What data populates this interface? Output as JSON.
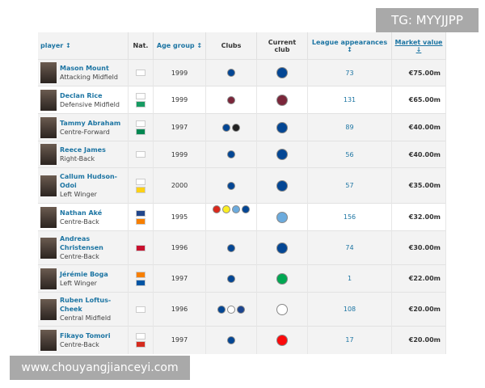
{
  "header": {
    "player": "player ↕",
    "nat": "Nat.",
    "age": "Age group ↕",
    "clubs": "Clubs",
    "current": "Current club",
    "apps": "League appearances ↕",
    "value": "Market value ↓"
  },
  "flag_colors": {
    "ENG": "#ffffff",
    "IRL": "#169b62",
    "NGA": "#008751",
    "GHA": "#fcd116",
    "NED": "#21468b",
    "CIV": "#f77f00",
    "DEN": "#c8102e",
    "FRA": "#0055a4",
    "CAN": "#d52b1e"
  },
  "club_colors": {
    "chelsea": "#034694",
    "westham": "#7a263a",
    "swansea": "#222222",
    "bournemouth": "#da291c",
    "watford": "#fbee23",
    "mancity": "#6cabdd",
    "sassuolo": "#00a752",
    "fulham": "#ffffff",
    "palace": "#1b458f",
    "milan": "#fb090b"
  },
  "rows": [
    {
      "name": "Mason Mount",
      "pos": "Attacking Midfield",
      "nat": [
        "ENG"
      ],
      "age": "1999",
      "clubs": [
        "chelsea"
      ],
      "current": "chelsea",
      "apps": "73",
      "value": "€75.00m"
    },
    {
      "name": "Declan Rice",
      "pos": "Defensive Midfield",
      "nat": [
        "ENG",
        "IRL"
      ],
      "age": "1999",
      "clubs": [
        "westham"
      ],
      "current": "westham",
      "apps": "131",
      "value": "€65.00m"
    },
    {
      "name": "Tammy Abraham",
      "pos": "Centre-Forward",
      "nat": [
        "ENG",
        "NGA"
      ],
      "age": "1997",
      "clubs": [
        "chelsea",
        "swansea"
      ],
      "current": "chelsea",
      "apps": "89",
      "value": "€40.00m"
    },
    {
      "name": "Reece James",
      "pos": "Right-Back",
      "nat": [
        "ENG"
      ],
      "age": "1999",
      "clubs": [
        "chelsea"
      ],
      "current": "chelsea",
      "apps": "56",
      "value": "€40.00m"
    },
    {
      "name": "Callum Hudson-Odoi",
      "pos": "Left Winger",
      "nat": [
        "ENG",
        "GHA"
      ],
      "age": "2000",
      "clubs": [
        "chelsea"
      ],
      "current": "chelsea",
      "apps": "57",
      "value": "€35.00m"
    },
    {
      "name": "Nathan Aké",
      "pos": "Centre-Back",
      "nat": [
        "NED",
        "CIV"
      ],
      "age": "1995",
      "clubs": [
        "bournemouth",
        "watford",
        "mancity",
        "chelsea"
      ],
      "current": "mancity",
      "apps": "156",
      "value": "€32.00m"
    },
    {
      "name": "Andreas Christensen",
      "pos": "Centre-Back",
      "nat": [
        "DEN"
      ],
      "age": "1996",
      "clubs": [
        "chelsea"
      ],
      "current": "chelsea",
      "apps": "74",
      "value": "€30.00m"
    },
    {
      "name": "Jérémie Boga",
      "pos": "Left Winger",
      "nat": [
        "CIV",
        "FRA"
      ],
      "age": "1997",
      "clubs": [
        "chelsea"
      ],
      "current": "sassuolo",
      "apps": "1",
      "value": "€22.00m"
    },
    {
      "name": "Ruben Loftus-Cheek",
      "pos": "Central Midfield",
      "nat": [
        "ENG"
      ],
      "age": "1996",
      "clubs": [
        "chelsea",
        "fulham",
        "palace"
      ],
      "current": "fulham",
      "apps": "108",
      "value": "€20.00m"
    },
    {
      "name": "Fikayo Tomori",
      "pos": "Centre-Back",
      "nat": [
        "ENG",
        "CAN"
      ],
      "age": "1997",
      "clubs": [
        "chelsea"
      ],
      "current": "milan",
      "apps": "17",
      "value": "€20.00m"
    }
  ],
  "watermark_top": "TG: MYYJJPP",
  "watermark_bottom": "www.chouyangjianceyi.com"
}
